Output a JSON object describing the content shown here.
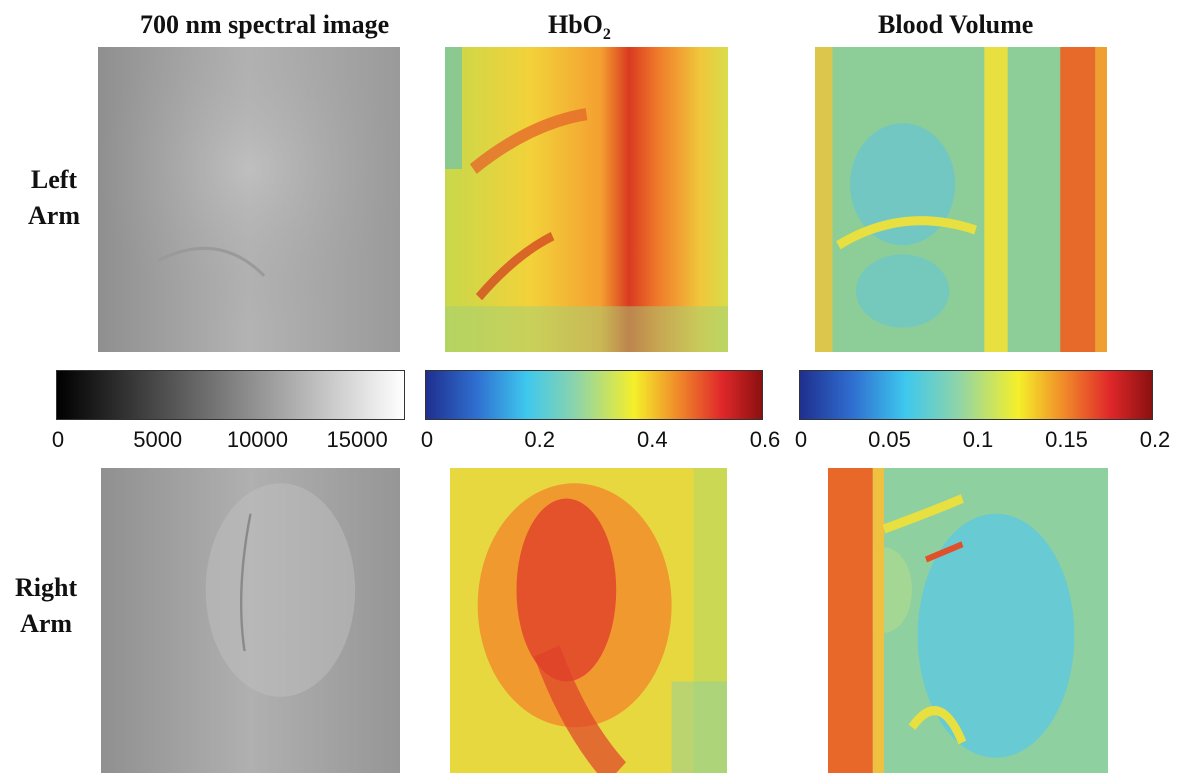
{
  "columns": {
    "spectral_title": "700 nm spectral image",
    "hbo2_title_main": "HbO",
    "hbo2_title_sub": "2",
    "blood_volume_title": "Blood Volume"
  },
  "rows": {
    "left_line1": "Left",
    "left_line2": "Arm",
    "right_line1": "Right",
    "right_line2": "Arm"
  },
  "colorbars": {
    "gray": {
      "ticks": [
        "0",
        "5000",
        "10000",
        "15000"
      ],
      "min": 0,
      "max": 17500
    },
    "hbo2": {
      "ticks": [
        "0",
        "0.2",
        "0.4",
        "0.6"
      ],
      "min": 0,
      "max": 0.6
    },
    "blood_volume": {
      "ticks": [
        "0",
        "0.05",
        "0.1",
        "0.15",
        "0.2"
      ],
      "min": 0,
      "max": 0.2
    }
  },
  "colors": {
    "jet_low": "#1f2f8f",
    "jet_mid": "#f5ef2a",
    "jet_high": "#8b1010"
  }
}
